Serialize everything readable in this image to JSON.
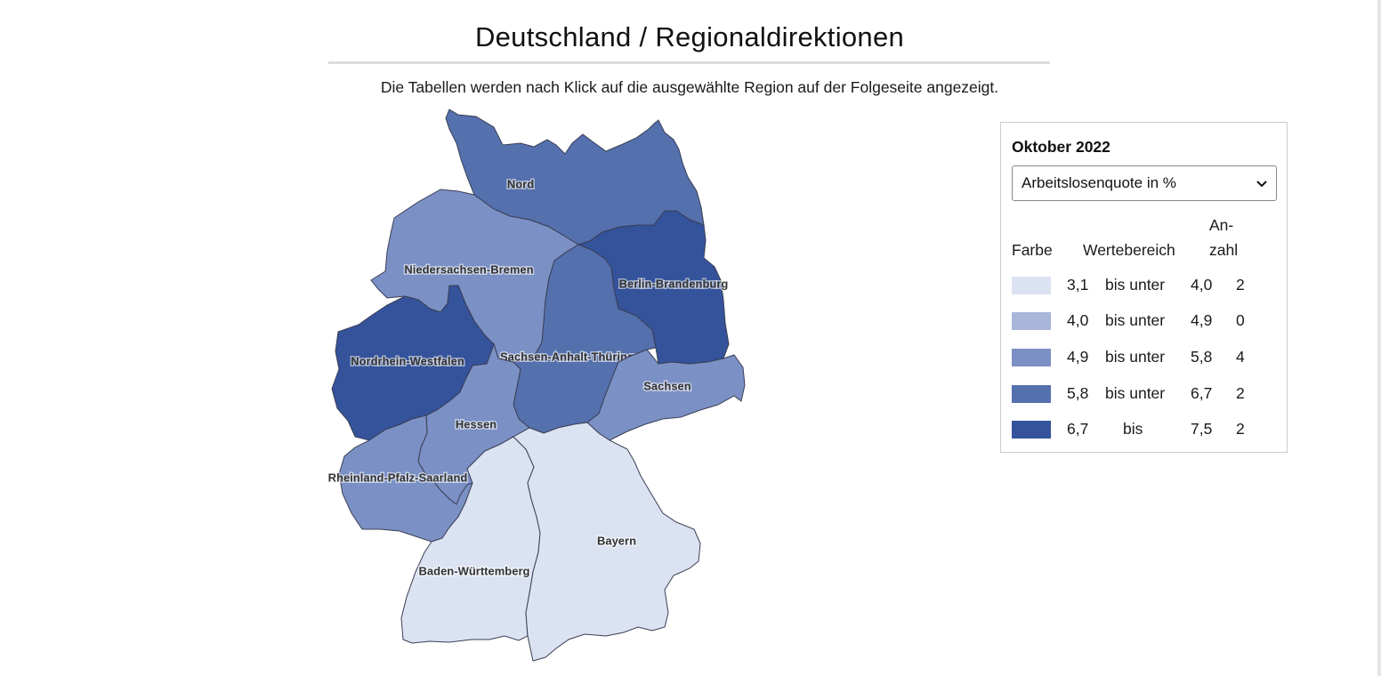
{
  "header": {
    "title": "Deutschland / Regionaldirektionen",
    "instruction": "Die Tabellen werden nach Klick auf die ausgewählte Region auf der Folgeseite angezeigt."
  },
  "map": {
    "regions": [
      {
        "name": "Nord",
        "color": "#5470ad"
      },
      {
        "name": "Niedersachsen-Bremen",
        "color": "#7b90c4"
      },
      {
        "name": "Berlin-Brandenburg",
        "color": "#34539b"
      },
      {
        "name": "Nordrhein-Westfalen",
        "color": "#34539b"
      },
      {
        "name": "Sachsen-Anhalt-Thüringen",
        "color": "#5470ad"
      },
      {
        "name": "Sachsen",
        "color": "#7b90c4"
      },
      {
        "name": "Hessen",
        "color": "#7b90c4"
      },
      {
        "name": "Rheinland-Pfalz-Saarland",
        "color": "#7b90c4"
      },
      {
        "name": "Baden-Württemberg",
        "color": "#dbe2f1"
      },
      {
        "name": "Bayern",
        "color": "#dbe2f1"
      }
    ]
  },
  "legend": {
    "period": "Oktober 2022",
    "selected_metric": "Arbeitslosenquote in %",
    "dropdown_icon": "chevron-down-icon",
    "headers": {
      "color": "Farbe",
      "range": "Wertebereich",
      "count_line1": "An-",
      "count_line2": "zahl"
    },
    "rows": [
      {
        "color": "#dbe2f1",
        "from": "3,1",
        "op": "bis unter",
        "to": "4,0",
        "count": "2"
      },
      {
        "color": "#a9b6da",
        "from": "4,0",
        "op": "bis unter",
        "to": "4,9",
        "count": "0"
      },
      {
        "color": "#7b90c4",
        "from": "4,9",
        "op": "bis unter",
        "to": "5,8",
        "count": "4"
      },
      {
        "color": "#5470ad",
        "from": "5,8",
        "op": "bis unter",
        "to": "6,7",
        "count": "2"
      },
      {
        "color": "#34539b",
        "from": "6,7",
        "op": "bis",
        "to": "7,5",
        "count": "2"
      }
    ]
  }
}
